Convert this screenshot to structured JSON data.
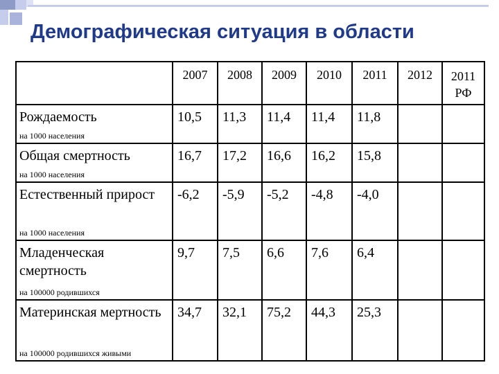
{
  "title": "Демографическая ситуация в области",
  "table": {
    "years": [
      "2007",
      "2008",
      "2009",
      "2010",
      "2011",
      "2012",
      "2011 РФ"
    ],
    "rows": [
      {
        "label": "Рождаемость",
        "unit": "на 1000 населения",
        "values": [
          "10,5",
          "11,3",
          "11,4",
          "11,4",
          "11,8",
          "",
          ""
        ]
      },
      {
        "label": "Общая смертность",
        "unit": "на 1000 населения",
        "values": [
          "16,7",
          "17,2",
          "16,6",
          "16,2",
          "15,8",
          "",
          ""
        ]
      },
      {
        "label": "Естественный прирост",
        "unit": "на 1000 населения",
        "values": [
          "-6,2",
          "-5,9",
          "-5,2",
          "-4,8",
          "-4,0",
          "",
          ""
        ]
      },
      {
        "label": "Младенческая смертность",
        "unit": "на 100000 родившихся",
        "values": [
          "9,7",
          "7,5",
          "6,6",
          "7,6",
          "6,4",
          "",
          ""
        ]
      },
      {
        "label": "Материнская мертность",
        "unit": "на 100000 родившихся живыми",
        "values": [
          "34,7",
          "32,1",
          "75,2",
          "44,3",
          "25,3",
          "",
          ""
        ]
      }
    ]
  }
}
